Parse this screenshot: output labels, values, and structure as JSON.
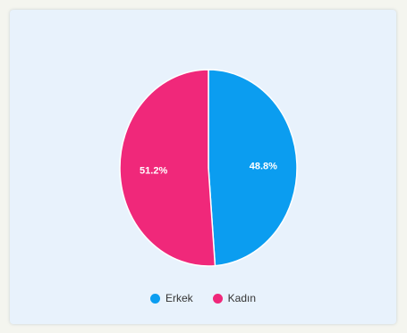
{
  "chart_data": {
    "type": "pie",
    "title": "",
    "legend_position": "bottom",
    "slices": [
      {
        "label": "Erkek",
        "value": 48.8,
        "value_label": "48.8%",
        "color": "#0b9df0"
      },
      {
        "label": "Kadın",
        "value": 51.2,
        "value_label": "51.2%",
        "color": "#f0287a"
      }
    ]
  },
  "colors": {
    "card_background": "#e8f2fc",
    "page_background": "#f4f5ef"
  }
}
